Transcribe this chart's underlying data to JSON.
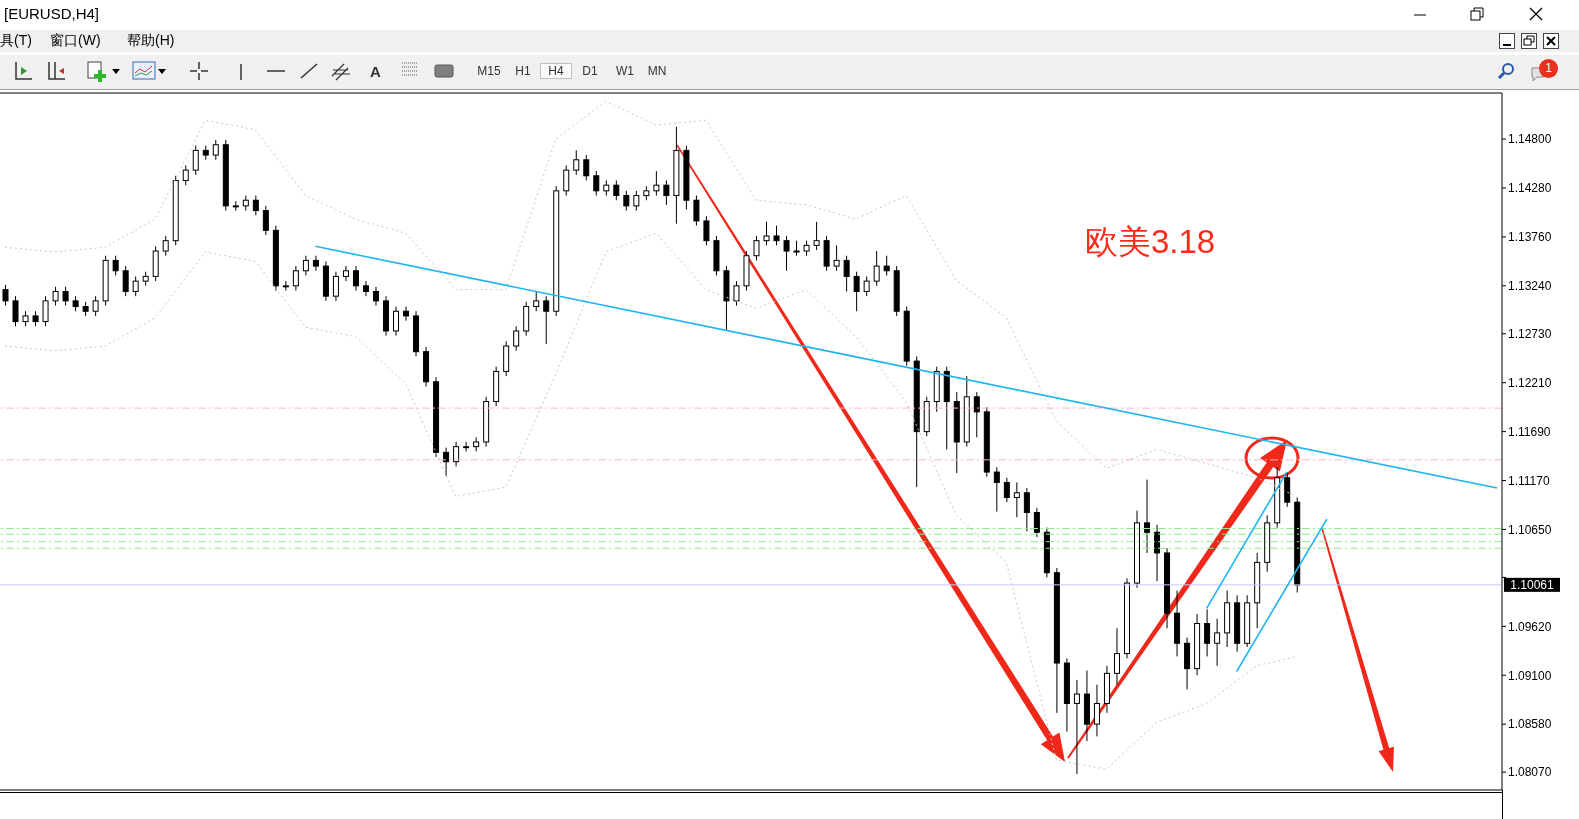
{
  "chart_data": {
    "type": "candlestick",
    "title": "[EURUSD,H4]",
    "annotations": [
      "欧美3.18",
      "具(T)",
      "窗口(W)",
      "帮助(H)",
      "M15",
      "H1",
      "H4",
      "D1",
      "W1",
      "MN",
      "A",
      "1"
    ],
    "color": "#000000",
    "marker": "none",
    "tick_labels": "y",
    "categories": [
      null,
      null,
      null,
      null,
      null,
      null,
      null,
      null,
      null,
      null,
      null,
      null,
      null,
      null,
      null,
      null,
      null,
      null,
      null,
      null,
      null,
      null,
      null,
      null,
      null,
      null,
      null,
      null,
      null,
      null,
      null,
      null,
      null,
      null,
      null,
      null,
      null,
      null,
      null,
      null,
      null,
      null,
      null,
      null,
      null,
      null,
      null,
      null,
      null,
      null,
      null,
      null,
      null,
      null,
      null,
      null,
      null,
      null,
      null,
      null,
      null,
      null,
      null,
      null,
      null,
      null,
      null,
      null,
      null,
      null,
      null,
      null,
      null,
      null,
      null,
      null,
      null,
      null,
      null,
      null,
      null,
      null,
      null,
      null,
      null,
      null,
      null,
      null,
      null,
      null,
      null,
      null,
      null,
      null,
      null,
      null,
      null,
      null,
      null,
      null,
      null,
      null,
      null,
      null,
      null,
      null,
      null,
      null,
      null,
      null,
      null,
      null,
      null,
      null,
      null,
      null,
      null,
      null,
      null,
      null,
      null,
      null,
      null,
      null,
      null,
      null,
      null,
      null,
      null,
      null,
      null,
      null,
      null,
      null,
      null,
      null,
      null,
      null,
      null,
      null,
      null,
      null,
      null,
      null,
      null,
      null,
      null,
      null,
      null,
      null
    ],
    "ohlc": [
      [
        1.132,
        1.1325,
        1.1303,
        1.1308
      ],
      [
        1.1308,
        1.1313,
        1.1281,
        1.1286
      ],
      [
        1.1286,
        1.1297,
        1.1281,
        1.1292
      ],
      [
        1.1292,
        1.1297,
        1.1281,
        1.1286
      ],
      [
        1.1286,
        1.1313,
        1.1281,
        1.1308
      ],
      [
        1.1308,
        1.1323,
        1.1303,
        1.1318
      ],
      [
        1.1318,
        1.1323,
        1.1303,
        1.1308
      ],
      [
        1.1308,
        1.1313,
        1.1297,
        1.1302
      ],
      [
        1.1302,
        1.1307,
        1.1292,
        1.1297
      ],
      [
        1.1297,
        1.1313,
        1.1292,
        1.1308
      ],
      [
        1.1308,
        1.1356,
        1.1303,
        1.1351
      ],
      [
        1.1351,
        1.1356,
        1.1335,
        1.134
      ],
      [
        1.134,
        1.1345,
        1.1313,
        1.1318
      ],
      [
        1.1318,
        1.1334,
        1.1313,
        1.1329
      ],
      [
        1.1329,
        1.1339,
        1.1324,
        1.1334
      ],
      [
        1.1334,
        1.1366,
        1.1329,
        1.1361
      ],
      [
        1.1361,
        1.1377,
        1.1356,
        1.1372
      ],
      [
        1.1372,
        1.1441,
        1.1367,
        1.1436
      ],
      [
        1.1436,
        1.1452,
        1.1431,
        1.1447
      ],
      [
        1.1447,
        1.1473,
        1.1442,
        1.1468
      ],
      [
        1.1468,
        1.1473,
        1.1458,
        1.1463
      ],
      [
        1.1463,
        1.1479,
        1.1458,
        1.1474
      ],
      [
        1.1474,
        1.1479,
        1.1404,
        1.1409
      ],
      [
        1.1409,
        1.1414,
        1.1404,
        1.1409
      ],
      [
        1.1409,
        1.142,
        1.1404,
        1.1415
      ],
      [
        1.1415,
        1.142,
        1.1399,
        1.1404
      ],
      [
        1.1404,
        1.1409,
        1.1378,
        1.1383
      ],
      [
        1.1383,
        1.1388,
        1.1319,
        1.1324
      ],
      [
        1.1324,
        1.1329,
        1.1319,
        1.1324
      ],
      [
        1.1324,
        1.1345,
        1.1319,
        1.134
      ],
      [
        1.134,
        1.1356,
        1.1335,
        1.1351
      ],
      [
        1.1351,
        1.1356,
        1.134,
        1.1345
      ],
      [
        1.1345,
        1.135,
        1.1308,
        1.1313
      ],
      [
        1.1313,
        1.1339,
        1.1308,
        1.1334
      ],
      [
        1.1334,
        1.1345,
        1.1329,
        1.134
      ],
      [
        1.134,
        1.1345,
        1.1319,
        1.1324
      ],
      [
        1.1324,
        1.1329,
        1.1313,
        1.1318
      ],
      [
        1.1318,
        1.1323,
        1.1303,
        1.1308
      ],
      [
        1.1308,
        1.1313,
        1.1271,
        1.1276
      ],
      [
        1.1276,
        1.1302,
        1.1271,
        1.1297
      ],
      [
        1.1297,
        1.1302,
        1.1287,
        1.1292
      ],
      [
        1.1292,
        1.1297,
        1.1249,
        1.1254
      ],
      [
        1.1254,
        1.1259,
        1.1217,
        1.1222
      ],
      [
        1.1222,
        1.1227,
        1.1142,
        1.1147
      ],
      [
        1.1147,
        1.1152,
        1.1122,
        1.1137
      ],
      [
        1.1137,
        1.1158,
        1.1132,
        1.1153
      ],
      [
        1.1153,
        1.1158,
        1.1148,
        1.1153
      ],
      [
        1.1153,
        1.1163,
        1.1148,
        1.1158
      ],
      [
        1.1158,
        1.1206,
        1.1153,
        1.1201
      ],
      [
        1.1201,
        1.1238,
        1.1196,
        1.1233
      ],
      [
        1.1233,
        1.1265,
        1.1228,
        1.126
      ],
      [
        1.126,
        1.1281,
        1.1255,
        1.1276
      ],
      [
        1.1276,
        1.1307,
        1.1271,
        1.1302
      ],
      [
        1.1302,
        1.1318,
        1.1297,
        1.1308
      ],
      [
        1.1308,
        1.1313,
        1.1262,
        1.1297
      ],
      [
        1.1297,
        1.143,
        1.1292,
        1.1425
      ],
      [
        1.1425,
        1.1452,
        1.142,
        1.1447
      ],
      [
        1.1447,
        1.1468,
        1.1442,
        1.1458
      ],
      [
        1.1458,
        1.1463,
        1.1436,
        1.1441
      ],
      [
        1.1441,
        1.1446,
        1.142,
        1.1425
      ],
      [
        1.1425,
        1.1436,
        1.142,
        1.1431
      ],
      [
        1.1431,
        1.1436,
        1.1415,
        1.142
      ],
      [
        1.142,
        1.1425,
        1.1404,
        1.1409
      ],
      [
        1.1409,
        1.1425,
        1.1404,
        1.142
      ],
      [
        1.142,
        1.143,
        1.1415,
        1.1425
      ],
      [
        1.1425,
        1.1446,
        1.142,
        1.1431
      ],
      [
        1.1431,
        1.1436,
        1.141,
        1.142
      ],
      [
        1.142,
        1.1493,
        1.139,
        1.1468
      ],
      [
        1.1468,
        1.1473,
        1.1405,
        1.1415
      ],
      [
        1.1415,
        1.142,
        1.1388,
        1.1393
      ],
      [
        1.1393,
        1.1398,
        1.1367,
        1.1372
      ],
      [
        1.1372,
        1.1377,
        1.1335,
        1.134
      ],
      [
        1.134,
        1.1345,
        1.1277,
        1.1308
      ],
      [
        1.1308,
        1.1329,
        1.1303,
        1.1324
      ],
      [
        1.1324,
        1.1361,
        1.1319,
        1.1356
      ],
      [
        1.1356,
        1.1377,
        1.1351,
        1.1372
      ],
      [
        1.1372,
        1.1392,
        1.1367,
        1.1377
      ],
      [
        1.1377,
        1.1388,
        1.1367,
        1.1372
      ],
      [
        1.1372,
        1.1377,
        1.134,
        1.1361
      ],
      [
        1.1361,
        1.1372,
        1.1356,
        1.1361
      ],
      [
        1.1361,
        1.1372,
        1.1356,
        1.1367
      ],
      [
        1.1367,
        1.1392,
        1.1362,
        1.1372
      ],
      [
        1.1372,
        1.1377,
        1.134,
        1.1345
      ],
      [
        1.1345,
        1.1367,
        1.134,
        1.1351
      ],
      [
        1.1351,
        1.1356,
        1.1318,
        1.1334
      ],
      [
        1.1334,
        1.1339,
        1.1297,
        1.1318
      ],
      [
        1.1318,
        1.1334,
        1.1313,
        1.1329
      ],
      [
        1.1329,
        1.1361,
        1.1324,
        1.1345
      ],
      [
        1.1345,
        1.1356,
        1.1335,
        1.134
      ],
      [
        1.134,
        1.1345,
        1.1292,
        1.1297
      ],
      [
        1.1297,
        1.1302,
        1.1239,
        1.1244
      ],
      [
        1.1244,
        1.1249,
        1.111,
        1.1169
      ],
      [
        1.1169,
        1.1206,
        1.1164,
        1.1201
      ],
      [
        1.1201,
        1.1238,
        1.119,
        1.1233
      ],
      [
        1.1233,
        1.1238,
        1.115,
        1.1201
      ],
      [
        1.1201,
        1.1211,
        1.1125,
        1.1158
      ],
      [
        1.1158,
        1.1228,
        1.1153,
        1.1206
      ],
      [
        1.1206,
        1.1211,
        1.1163,
        1.119
      ],
      [
        1.119,
        1.1195,
        1.1121,
        1.1126
      ],
      [
        1.1126,
        1.1131,
        1.1084,
        1.1115
      ],
      [
        1.1115,
        1.112,
        1.1094,
        1.1099
      ],
      [
        1.1099,
        1.1115,
        1.1078,
        1.1104
      ],
      [
        1.1104,
        1.1109,
        1.1063,
        1.1083
      ],
      [
        1.1083,
        1.1088,
        1.1057,
        1.1062
      ],
      [
        1.1062,
        1.1067,
        1.1014,
        1.1019
      ],
      [
        1.1019,
        1.1024,
        1.087,
        1.0923
      ],
      [
        1.0923,
        1.0928,
        1.085,
        1.088
      ],
      [
        1.088,
        1.0905,
        1.0805,
        1.089
      ],
      [
        1.089,
        1.0915,
        1.084,
        1.0858
      ],
      [
        1.0858,
        1.09,
        1.0845,
        1.088
      ],
      [
        1.088,
        1.092,
        1.087,
        1.0912
      ],
      [
        1.0912,
        1.096,
        1.09,
        1.0933
      ],
      [
        1.0933,
        1.1013,
        1.0928,
        1.1008
      ],
      [
        1.1008,
        1.1085,
        1.1003,
        1.1072
      ],
      [
        1.1072,
        1.1118,
        1.104,
        1.1062
      ],
      [
        1.1062,
        1.107,
        1.101,
        1.104
      ],
      [
        1.104,
        1.1045,
        1.096,
        1.0976
      ],
      [
        1.0976,
        1.1,
        1.093,
        1.0944
      ],
      [
        1.0944,
        1.095,
        1.0895,
        1.0917
      ],
      [
        1.0917,
        1.0975,
        1.091,
        1.0965
      ],
      [
        1.0965,
        1.098,
        1.093,
        1.0944
      ],
      [
        1.0944,
        1.097,
        1.092,
        1.0955
      ],
      [
        1.0955,
        1.1,
        1.094,
        1.0987
      ],
      [
        1.0987,
        1.0995,
        1.0935,
        1.0944
      ],
      [
        1.0944,
        1.0995,
        1.094,
        1.0987
      ],
      [
        1.0987,
        1.104,
        1.096,
        1.103
      ],
      [
        1.103,
        1.108,
        1.102,
        1.1072
      ],
      [
        1.1072,
        1.1131,
        1.1067,
        1.112
      ],
      [
        1.112,
        1.1125,
        1.1089,
        1.1094
      ],
      [
        1.1094,
        1.1099,
        1.0998,
        1.1006
      ],
      null,
      null,
      null,
      null,
      null,
      null,
      null,
      null,
      null,
      null,
      null,
      null,
      null,
      null,
      null,
      null,
      null,
      null,
      null,
      null
    ],
    "series": [
      {
        "type": "line",
        "color": "#c8c8c8",
        "line_style": "dotted",
        "values": [
          1.1365,
          null,
          null,
          null,
          null,
          1.136,
          null,
          null,
          null,
          null,
          1.1365,
          null,
          null,
          null,
          null,
          1.1395,
          null,
          null,
          null,
          null,
          1.15,
          null,
          null,
          null,
          null,
          1.149,
          null,
          null,
          null,
          null,
          1.142,
          null,
          null,
          null,
          null,
          1.1395,
          null,
          null,
          null,
          null,
          1.138,
          null,
          null,
          null,
          null,
          1.132,
          null,
          null,
          null,
          null,
          1.132,
          null,
          null,
          null,
          null,
          1.148,
          null,
          null,
          null,
          null,
          1.152,
          null,
          null,
          null,
          null,
          1.1495,
          null,
          null,
          null,
          null,
          1.15,
          null,
          null,
          null,
          null,
          1.1415,
          null,
          null,
          null,
          null,
          1.141,
          null,
          null,
          null,
          null,
          1.1395,
          null,
          null,
          null,
          null,
          1.142,
          null,
          null,
          null,
          null,
          1.133,
          null,
          null,
          null,
          null,
          1.129,
          null,
          null,
          null,
          null,
          1.118,
          null,
          null,
          null,
          null,
          1.113,
          null,
          null,
          null,
          null,
          1.115,
          null,
          null,
          null,
          null,
          1.1135,
          null,
          null,
          null,
          null,
          1.112,
          null,
          null,
          null,
          1.11,
          null,
          null,
          null,
          null,
          null,
          null,
          null,
          null,
          null,
          null,
          null,
          null,
          null,
          null,
          null,
          null,
          null,
          null,
          null,
          null
        ]
      },
      {
        "type": "line",
        "color": "#c8c8c8",
        "line_style": "dotted",
        "values": [
          1.126,
          null,
          null,
          null,
          null,
          1.1255,
          null,
          null,
          null,
          null,
          1.126,
          null,
          null,
          null,
          null,
          1.129,
          null,
          null,
          null,
          null,
          1.136,
          null,
          null,
          null,
          null,
          1.135,
          null,
          null,
          null,
          null,
          1.128,
          null,
          null,
          null,
          null,
          1.127,
          null,
          null,
          null,
          null,
          1.122,
          null,
          null,
          null,
          null,
          1.11,
          null,
          null,
          null,
          null,
          1.111,
          null,
          null,
          null,
          null,
          1.123,
          null,
          null,
          null,
          null,
          1.136,
          null,
          null,
          null,
          null,
          1.138,
          null,
          null,
          null,
          null,
          1.132,
          null,
          null,
          null,
          null,
          1.13,
          null,
          null,
          null,
          null,
          1.132,
          null,
          null,
          null,
          null,
          1.127,
          null,
          null,
          null,
          null,
          1.12,
          null,
          null,
          null,
          null,
          1.108,
          null,
          null,
          null,
          null,
          1.103,
          null,
          null,
          null,
          null,
          1.082,
          null,
          null,
          null,
          null,
          1.081,
          null,
          null,
          null,
          null,
          1.086,
          null,
          null,
          null,
          null,
          1.088,
          null,
          null,
          null,
          null,
          1.092,
          null,
          null,
          null,
          1.093,
          null,
          null,
          null,
          null,
          null,
          null,
          null,
          null,
          null,
          null,
          null,
          null,
          null,
          null,
          null,
          null,
          null,
          null,
          null,
          null
        ]
      },
      {
        "type": "line",
        "color": "#1eb4f0",
        "line_style": "solid",
        "values": [
          null,
          null,
          null,
          null,
          null,
          null,
          null,
          null,
          null,
          null,
          null,
          null,
          null,
          null,
          null,
          null,
          null,
          null,
          null,
          null,
          null,
          null,
          null,
          null,
          null,
          null,
          null,
          null,
          null,
          null,
          null,
          1.1366,
          null,
          null,
          null,
          null,
          null,
          null,
          null,
          null,
          null,
          null,
          null,
          null,
          null,
          null,
          null,
          null,
          null,
          null,
          null,
          null,
          null,
          null,
          null,
          null,
          null,
          null,
          null,
          null,
          null,
          null,
          null,
          null,
          null,
          null,
          null,
          null,
          null,
          null,
          null,
          null,
          null,
          null,
          null,
          null,
          null,
          null,
          null,
          null,
          null,
          null,
          null,
          null,
          null,
          null,
          null,
          null,
          null,
          null,
          null,
          null,
          null,
          null,
          null,
          null,
          null,
          null,
          null,
          null,
          null,
          null,
          null,
          null,
          null,
          null,
          null,
          null,
          null,
          null,
          null,
          null,
          null,
          null,
          null,
          null,
          null,
          null,
          null,
          null,
          null,
          null,
          null,
          null,
          null,
          null,
          null,
          null,
          null,
          null,
          null,
          null,
          null,
          null,
          null,
          null,
          null,
          null,
          null,
          null,
          null,
          null,
          null,
          null,
          null,
          null,
          null,
          null,
          null,
          1.1109
        ]
      },
      {
        "type": "line",
        "color": "#1eb4f0",
        "line_style": "solid",
        "values": [
          null,
          null,
          null,
          null,
          null,
          null,
          null,
          null,
          null,
          null,
          null,
          null,
          null,
          null,
          null,
          null,
          null,
          null,
          null,
          null,
          null,
          null,
          null,
          null,
          null,
          null,
          null,
          null,
          null,
          null,
          null,
          null,
          null,
          null,
          null,
          null,
          null,
          null,
          null,
          null,
          null,
          null,
          null,
          null,
          null,
          null,
          null,
          null,
          null,
          null,
          null,
          null,
          null,
          null,
          null,
          null,
          null,
          null,
          null,
          null,
          null,
          null,
          null,
          null,
          null,
          null,
          null,
          null,
          null,
          null,
          null,
          null,
          null,
          null,
          null,
          null,
          null,
          null,
          null,
          null,
          null,
          null,
          null,
          null,
          null,
          null,
          null,
          null,
          null,
          null,
          null,
          null,
          null,
          null,
          null,
          null,
          null,
          null,
          null,
          null,
          null,
          null,
          null,
          null,
          null,
          null,
          null,
          null,
          null,
          null,
          null,
          null,
          null,
          null,
          null,
          null,
          null,
          null,
          null,
          null,
          1.0981,
          null,
          null,
          null,
          null,
          null,
          null,
          null,
          1.1126,
          null,
          null,
          null,
          null,
          null,
          null,
          null,
          null,
          null,
          null,
          null,
          null,
          null,
          null,
          null,
          null,
          null,
          null,
          null,
          null,
          null
        ]
      },
      {
        "type": "line",
        "color": "#1eb4f0",
        "line_style": "solid",
        "values": [
          null,
          null,
          null,
          null,
          null,
          null,
          null,
          null,
          null,
          null,
          null,
          null,
          null,
          null,
          null,
          null,
          null,
          null,
          null,
          null,
          null,
          null,
          null,
          null,
          null,
          null,
          null,
          null,
          null,
          null,
          null,
          null,
          null,
          null,
          null,
          null,
          null,
          null,
          null,
          null,
          null,
          null,
          null,
          null,
          null,
          null,
          null,
          null,
          null,
          null,
          null,
          null,
          null,
          null,
          null,
          null,
          null,
          null,
          null,
          null,
          null,
          null,
          null,
          null,
          null,
          null,
          null,
          null,
          null,
          null,
          null,
          null,
          null,
          null,
          null,
          null,
          null,
          null,
          null,
          null,
          null,
          null,
          null,
          null,
          null,
          null,
          null,
          null,
          null,
          null,
          null,
          null,
          null,
          null,
          null,
          null,
          null,
          null,
          null,
          null,
          null,
          null,
          null,
          null,
          null,
          null,
          null,
          null,
          null,
          null,
          null,
          null,
          null,
          null,
          null,
          null,
          null,
          null,
          null,
          null,
          null,
          null,
          null,
          1.0914,
          null,
          null,
          null,
          null,
          null,
          null,
          null,
          null,
          1.1076,
          null,
          null,
          null,
          null,
          null,
          null,
          null,
          null,
          null,
          null,
          null,
          null,
          null,
          null,
          null,
          null,
          null
        ]
      }
    ],
    "ref_lines": [
      {
        "axis": "y",
        "value": 1.1194,
        "color": "#ffb4c8",
        "line_style": "dashed"
      },
      {
        "axis": "y",
        "value": 1.1139,
        "color": "#ffb4c8",
        "line_style": "dashed"
      },
      {
        "axis": "y",
        "value": 1.1066,
        "color": "#90e890",
        "line_style": "dashed"
      },
      {
        "axis": "y",
        "value": 1.106,
        "color": "#90e890",
        "line_style": "dashed"
      },
      {
        "axis": "y",
        "value": 1.1052,
        "color": "#90e890",
        "line_style": "dashed"
      },
      {
        "axis": "y",
        "value": 1.1045,
        "color": "#90e890",
        "line_style": "dashed"
      },
      {
        "axis": "y",
        "value": 1.10061,
        "label": "1.10061",
        "color": "#c8c8ff",
        "line_style": "solid"
      }
    ],
    "ylim": [
      1.0788,
      1.1529
    ],
    "yticks": [
      {
        "value": 1.148,
        "label": "1.14800"
      },
      {
        "value": 1.1428,
        "label": "1.14280"
      },
      {
        "value": 1.1376,
        "label": "1.13760"
      },
      {
        "value": 1.1324,
        "label": "1.13240"
      },
      {
        "value": 1.1273,
        "label": "1.12730"
      },
      {
        "value": 1.1221,
        "label": "1.12210"
      },
      {
        "value": 1.1169,
        "label": "1.11690"
      },
      {
        "value": 1.1117,
        "label": "1.11170"
      },
      {
        "value": 1.1065,
        "label": "1.10650"
      },
      {
        "value": 1.1014,
        "label": null
      },
      {
        "value": 1.0962,
        "label": "1.09620"
      },
      {
        "value": 1.091,
        "label": "1.09100"
      },
      {
        "value": 1.0858,
        "label": "1.08580"
      },
      {
        "value": 1.0807,
        "label": "1.08070"
      }
    ]
  }
}
